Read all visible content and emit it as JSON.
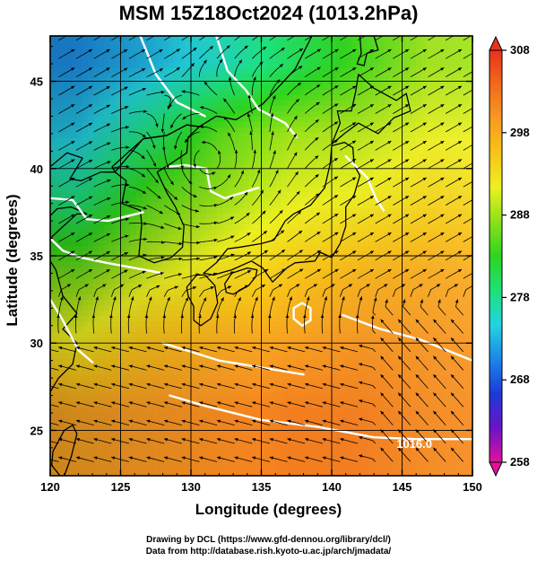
{
  "title": "MSM 15Z18Oct2024 (1013.2hPa)",
  "xlabel": "Longitude (degrees)",
  "ylabel": "Latitude  (degrees)",
  "credits": [
    "Drawing by DCL (https://www.gfd-dennou.org/library/dcl/)",
    "Data from http://database.rish.kyoto-u.ac.jp/arch/jmadata/"
  ],
  "contour_label": "1016.0",
  "map": {
    "lon_range": [
      120,
      150
    ],
    "lat_range": [
      22.4,
      47.6
    ],
    "lon_ticks": [
      120,
      125,
      130,
      135,
      140,
      145,
      150
    ],
    "lat_ticks": [
      25,
      30,
      35,
      40,
      45
    ],
    "lon_tick_labels": [
      "120",
      "125",
      "130",
      "135",
      "140",
      "145",
      "150"
    ],
    "lat_tick_labels": [
      "25",
      "30",
      "35",
      "40",
      "45"
    ]
  },
  "colorbar": {
    "min": 258,
    "max": 308,
    "tick_values": [
      308,
      298,
      288,
      278,
      268,
      258
    ],
    "tick_labels": [
      "308",
      "298",
      "288",
      "278",
      "268",
      "258"
    ],
    "colors": [
      "#e0129a",
      "#6a14c8",
      "#1c3ad8",
      "#1b86e8",
      "#23d4e0",
      "#1ee07a",
      "#2ed61e",
      "#8ce018",
      "#eef020",
      "#f8c418",
      "#f89a22",
      "#f26a1c",
      "#e8321c"
    ]
  },
  "chart_data": {
    "type": "heatmap",
    "title": "MSM 15Z18Oct2024 (1013.2hPa)",
    "xlabel": "Longitude (degrees)",
    "ylabel": "Latitude  (degrees)",
    "xlim": [
      120,
      150
    ],
    "ylim": [
      22.4,
      47.6
    ],
    "value_range": [
      258,
      308
    ],
    "values_sampled_by_lat": [
      {
        "lat": 46,
        "values": [
          271,
          273,
          276,
          280,
          284,
          288
        ]
      },
      {
        "lat": 42,
        "values": [
          274,
          279,
          285,
          288,
          289,
          291
        ]
      },
      {
        "lat": 38,
        "values": [
          279,
          285,
          288,
          291,
          292,
          294
        ]
      },
      {
        "lat": 34,
        "values": [
          286,
          290,
          293,
          295,
          297,
          298
        ]
      },
      {
        "lat": 30,
        "values": [
          292,
          296,
          298,
          299,
          300,
          300
        ]
      },
      {
        "lat": 26,
        "values": [
          299,
          300,
          301,
          302,
          302,
          301
        ]
      }
    ],
    "sample_lons": [
      122,
      127,
      132,
      137,
      142,
      147
    ]
  }
}
